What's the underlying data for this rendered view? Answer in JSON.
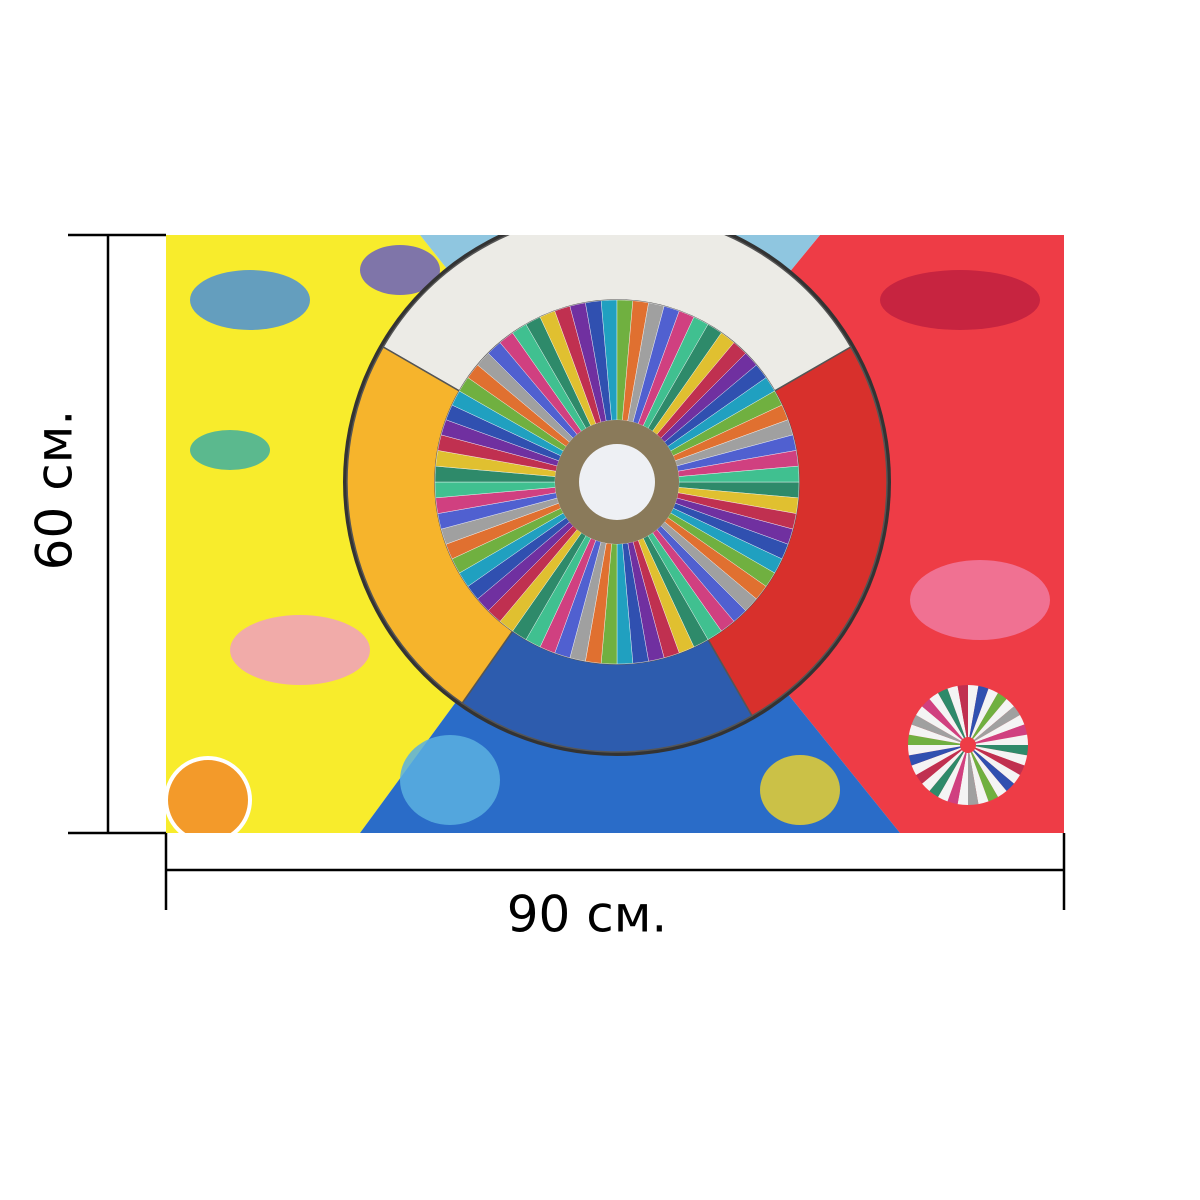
{
  "dimensions": {
    "height_label": "60 см.",
    "width_label": "90 см."
  }
}
